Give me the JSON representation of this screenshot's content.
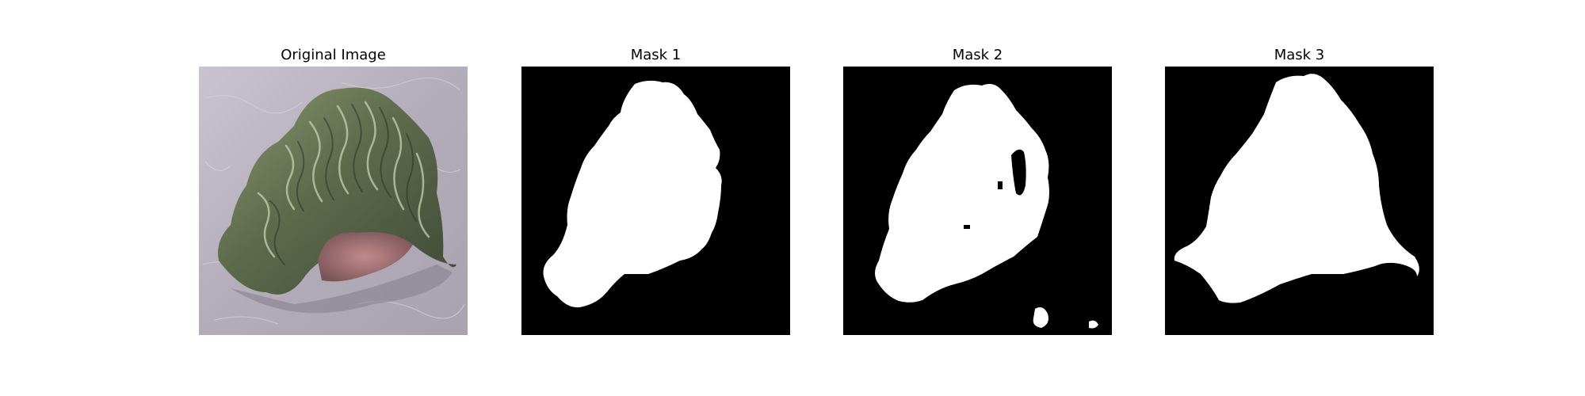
{
  "figure": {
    "panels": [
      {
        "title": "Original Image"
      },
      {
        "title": "Mask 1"
      },
      {
        "title": "Mask 2"
      },
      {
        "title": "Mask 3"
      }
    ]
  },
  "colors": {
    "background": "#ffffff",
    "mask_background": "#000000",
    "mask_foreground": "#ffffff",
    "leaf_green": "#6b7a56",
    "leaf_pink": "#a8747a",
    "fabric_gray": "#b9b3bd"
  }
}
